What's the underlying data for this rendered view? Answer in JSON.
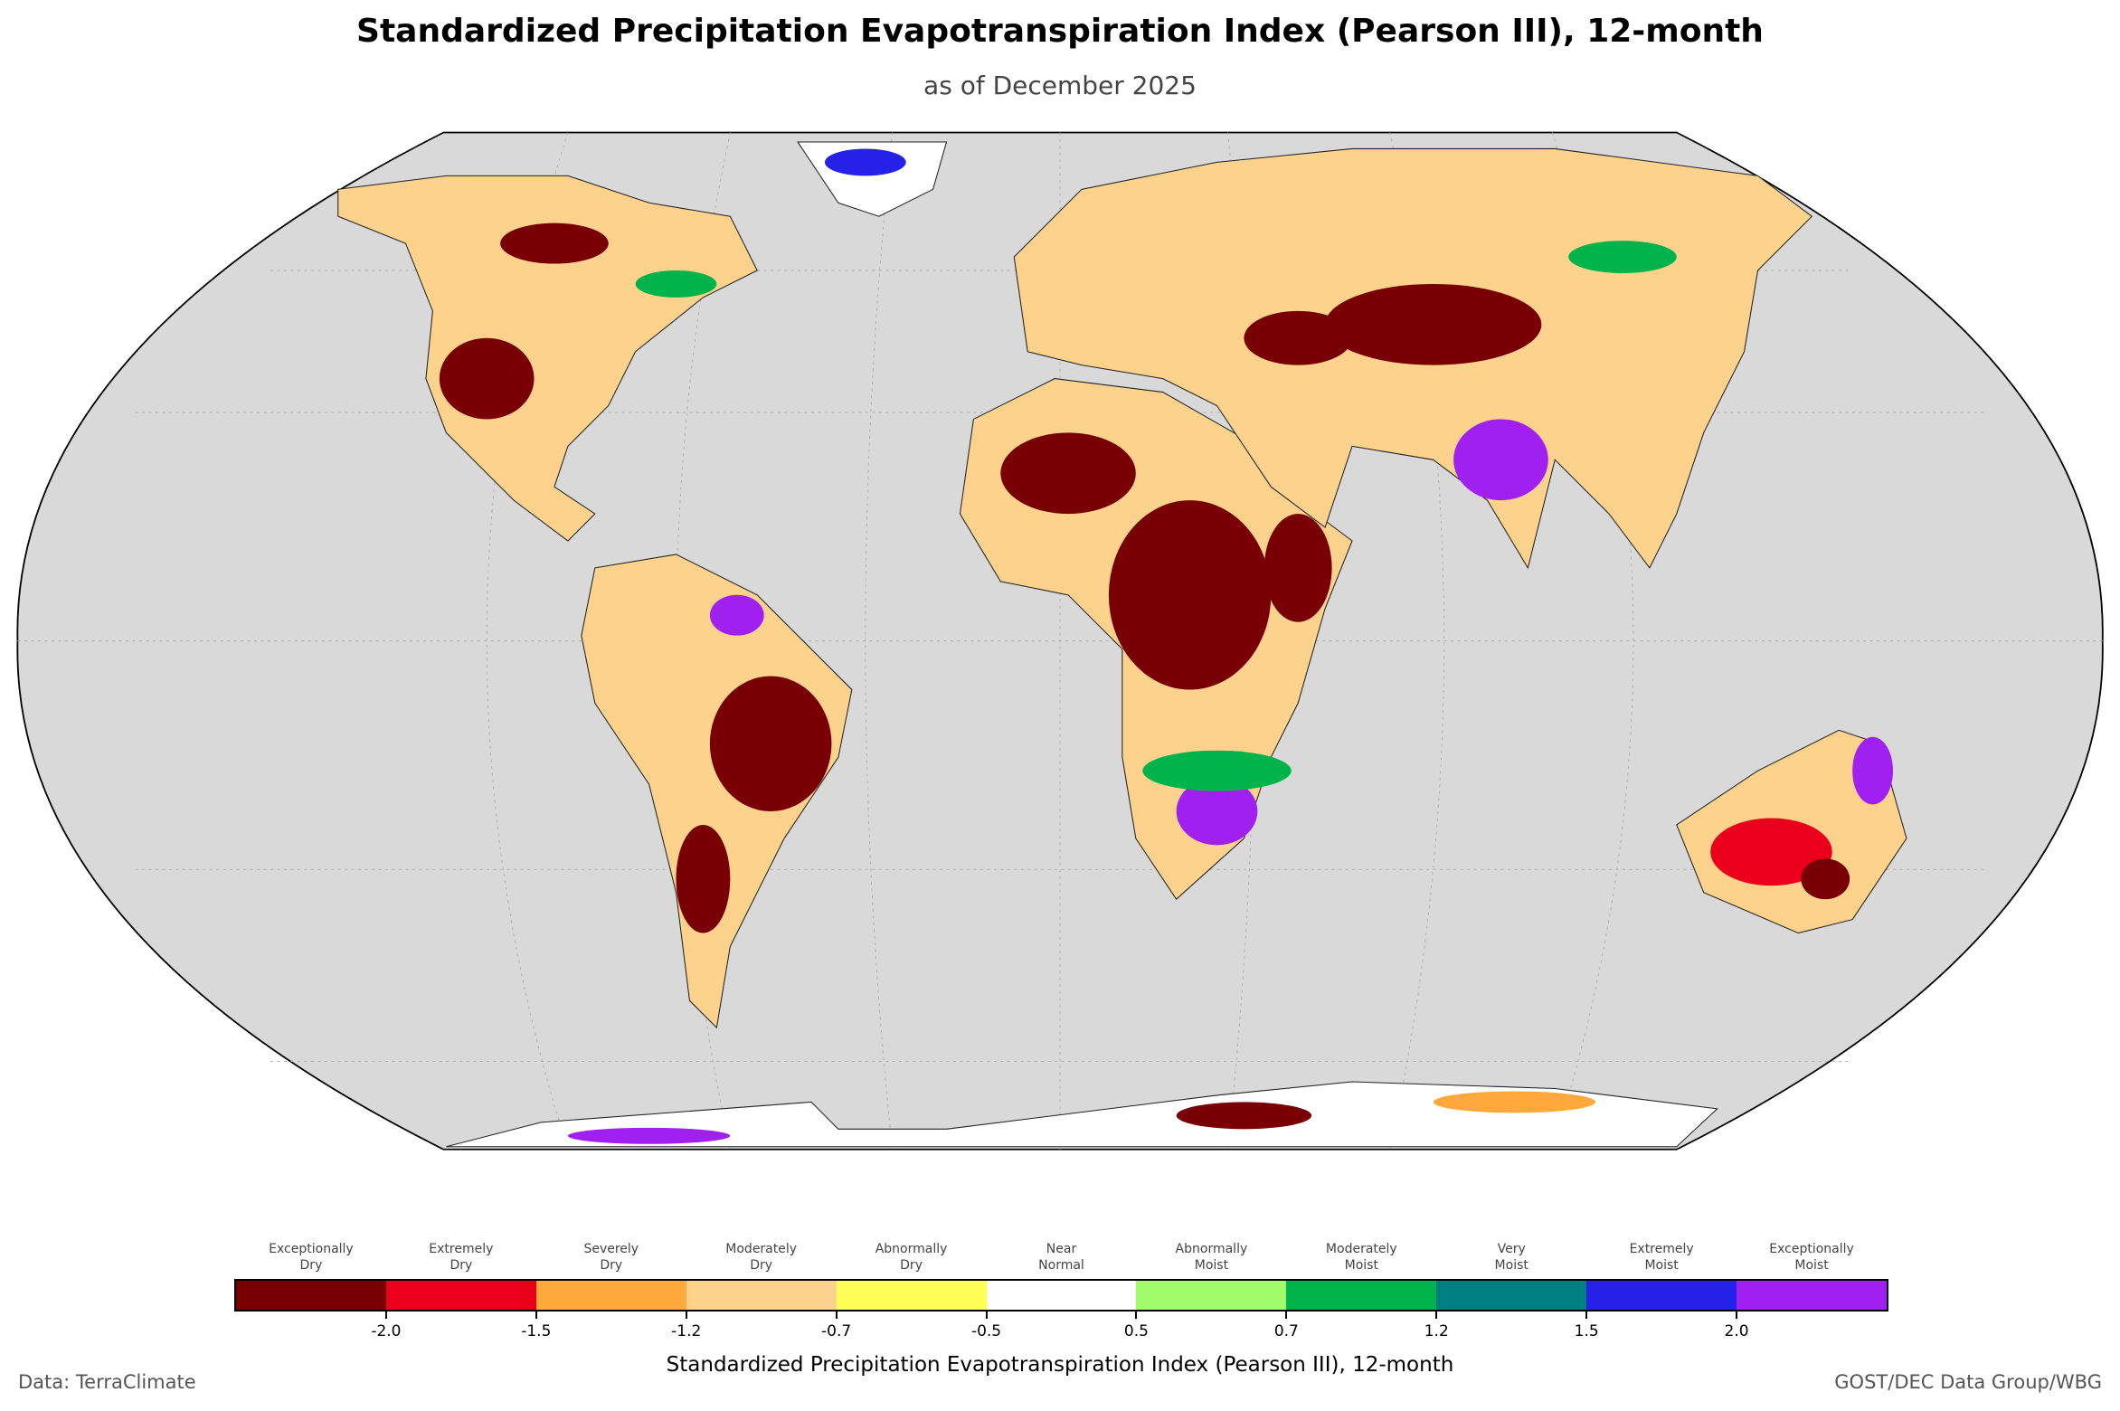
{
  "chart_data": {
    "type": "heatmap",
    "title": "Standardized Precipitation Evapotranspiration Index (Pearson III), 12-month",
    "subtitle": "as of December 2025",
    "projection": "Robinson world map",
    "colorbar": {
      "label": "Standardized Precipitation Evapotranspiration Index (Pearson III), 12-month",
      "ticks": [
        "-2.0",
        "-1.5",
        "-1.2",
        "-0.7",
        "-0.5",
        "0.5",
        "0.7",
        "1.2",
        "1.5",
        "2.0"
      ],
      "categories": [
        {
          "line1": "Exceptionally",
          "line2": "Dry",
          "color": "#780005"
        },
        {
          "line1": "Extremely",
          "line2": "Dry",
          "color": "#eb001c"
        },
        {
          "line1": "Severely",
          "line2": "Dry",
          "color": "#ffa83b"
        },
        {
          "line1": "Moderately",
          "line2": "Dry",
          "color": "#fdd28c"
        },
        {
          "line1": "Abnormally",
          "line2": "Dry",
          "color": "#ffff57"
        },
        {
          "line1": "Near",
          "line2": "Normal",
          "color": "#ffffff"
        },
        {
          "line1": "Abnormally",
          "line2": "Moist",
          "color": "#a1fc6b"
        },
        {
          "line1": "Moderately",
          "line2": "Moist",
          "color": "#00b34a"
        },
        {
          "line1": "Very",
          "line2": "Moist",
          "color": "#007f80"
        },
        {
          "line1": "Extremely",
          "line2": "Moist",
          "color": "#2621e8"
        },
        {
          "line1": "Exceptionally",
          "line2": "Moist",
          "color": "#a020f0"
        }
      ]
    },
    "ocean_color": "#d9d9d9"
  },
  "footer": {
    "left": "Data: TerraClimate",
    "right": "GOST/DEC Data Group/WBG"
  }
}
